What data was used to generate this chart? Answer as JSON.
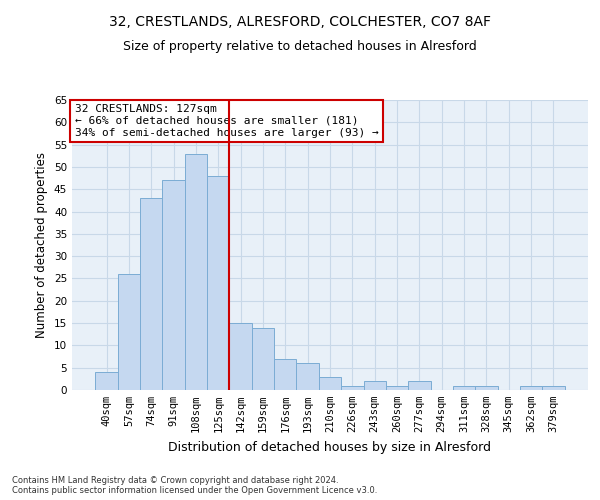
{
  "title_line1": "32, CRESTLANDS, ALRESFORD, COLCHESTER, CO7 8AF",
  "title_line2": "Size of property relative to detached houses in Alresford",
  "xlabel": "Distribution of detached houses by size in Alresford",
  "ylabel": "Number of detached properties",
  "categories": [
    "40sqm",
    "57sqm",
    "74sqm",
    "91sqm",
    "108sqm",
    "125sqm",
    "142sqm",
    "159sqm",
    "176sqm",
    "193sqm",
    "210sqm",
    "226sqm",
    "243sqm",
    "260sqm",
    "277sqm",
    "294sqm",
    "311sqm",
    "328sqm",
    "345sqm",
    "362sqm",
    "379sqm"
  ],
  "values": [
    4,
    26,
    43,
    47,
    53,
    48,
    15,
    14,
    7,
    6,
    3,
    1,
    2,
    1,
    2,
    0,
    1,
    1,
    0,
    1,
    1
  ],
  "bar_color": "#c5d8f0",
  "bar_edge_color": "#7bacd4",
  "vline_x": 5.5,
  "vline_color": "#cc0000",
  "annotation_line1": "32 CRESTLANDS: 127sqm",
  "annotation_line2": "← 66% of detached houses are smaller (181)",
  "annotation_line3": "34% of semi-detached houses are larger (93) →",
  "annotation_box_color": "#ffffff",
  "annotation_box_edge": "#cc0000",
  "ylim": [
    0,
    65
  ],
  "yticks": [
    0,
    5,
    10,
    15,
    20,
    25,
    30,
    35,
    40,
    45,
    50,
    55,
    60,
    65
  ],
  "grid_color": "#c8d8e8",
  "background_color": "#e8f0f8",
  "footer_text": "Contains HM Land Registry data © Crown copyright and database right 2024.\nContains public sector information licensed under the Open Government Licence v3.0.",
  "title_fontsize": 10,
  "subtitle_fontsize": 9,
  "tick_fontsize": 7.5,
  "axis_ylabel_fontsize": 8.5,
  "axis_xlabel_fontsize": 9,
  "annotation_fontsize": 8,
  "footer_fontsize": 6
}
